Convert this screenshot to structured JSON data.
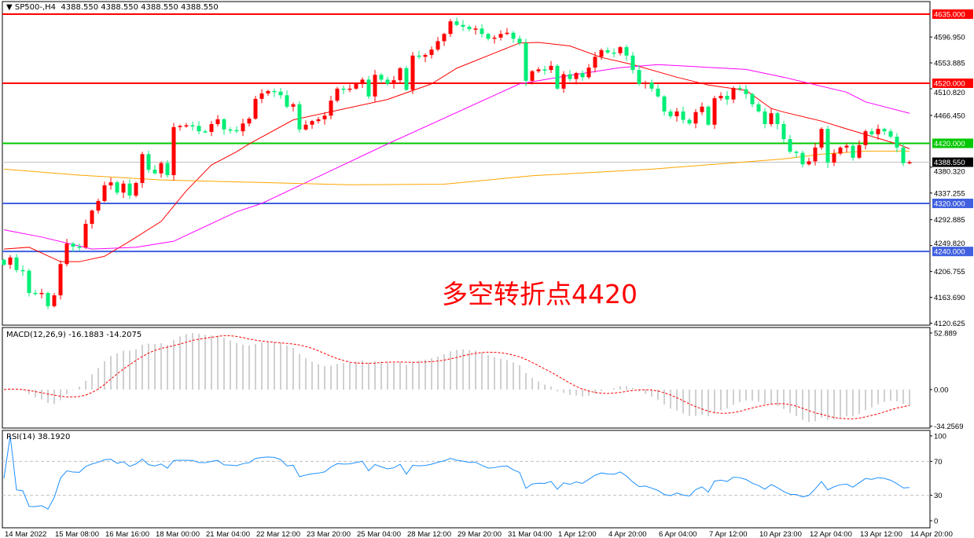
{
  "header": {
    "symbol": "SP500-,H4",
    "ohlc": "4388.550 4388.550 4388.550 4388.550"
  },
  "annotation": "多空转折点4420",
  "macd_label": "MACD(12,26,9) -16.1883 -14.2075",
  "rsi_label": "RSI(14) 38.1920",
  "colors": {
    "bull": "#ff0000",
    "bear": "#00ee76",
    "ma_fast": "#ff0000",
    "ma_mid": "#ff00ff",
    "ma_slow": "#ffa500",
    "macd_hist": "#c0c0c0",
    "macd_signal": "#ff0000",
    "rsi": "#1e90ff"
  },
  "chart_data": [
    {
      "type": "candlestick",
      "timeframe": "H4",
      "symbol": "SP500-",
      "ylim": [
        4120.625,
        4640.015
      ],
      "price_ticks": [
        "4596.950",
        "4553.885",
        "4510.820",
        "4466.450",
        "4380.320",
        "4337.255",
        "4292.885",
        "4249.820",
        "4206.755",
        "4163.690",
        "4120.625"
      ],
      "time_labels": [
        "14 Mar 2022",
        "15 Mar 08:00",
        "16 Mar 16:00",
        "18 Mar 00:00",
        "21 Mar 04:00",
        "22 Mar 12:00",
        "23 Mar 20:00",
        "25 Mar 04:00",
        "28 Mar 12:00",
        "29 Mar 20:00",
        "31 Mar 04:00",
        "1 Apr 12:00",
        "4 Apr 20:00",
        "6 Apr 04:00",
        "7 Apr 12:00",
        "10 Apr 23:00",
        "12 Apr 04:00",
        "13 Apr 12:00",
        "14 Apr 20:00"
      ],
      "close": [
        4218,
        4230,
        4209,
        4208,
        4171,
        4170,
        4171,
        4149,
        4167,
        4219,
        4253,
        4248,
        4247,
        4286,
        4308,
        4324,
        4350,
        4355,
        4338,
        4353,
        4333,
        4354,
        4402,
        4376,
        4370,
        4387,
        4367,
        4447,
        4449,
        4450,
        4449,
        4440,
        4439,
        4452,
        4460,
        4443,
        4442,
        4440,
        4453,
        4461,
        4494,
        4503,
        4507,
        4506,
        4500,
        4481,
        4485,
        4443,
        4451,
        4457,
        4460,
        4466,
        4491,
        4511,
        4510,
        4511,
        4519,
        4526,
        4498,
        4534,
        4526,
        4519,
        4525,
        4545,
        4509,
        4566,
        4564,
        4567,
        4576,
        4590,
        4602,
        4623,
        4617,
        4614,
        4610,
        4611,
        4602,
        4594,
        4596,
        4602,
        4604,
        4594,
        4587,
        4524,
        4540,
        4543,
        4542,
        4549,
        4511,
        4535,
        4527,
        4537,
        4530,
        4546,
        4564,
        4575,
        4571,
        4570,
        4580,
        4566,
        4542,
        4519,
        4521,
        4511,
        4498,
        4473,
        4465,
        4473,
        4459,
        4453,
        4472,
        4481,
        4451,
        4495,
        4499,
        4493,
        4512,
        4510,
        4502,
        4485,
        4473,
        4452,
        4470,
        4452,
        4427,
        4406,
        4404,
        4385,
        4390,
        4413,
        4444,
        4388,
        4403,
        4413,
        4416,
        4396,
        4417,
        4440,
        4435,
        4444,
        4440,
        4431,
        4413,
        4387,
        4388.55
      ],
      "moving_averages": [
        {
          "color": "#ff0000",
          "points": [
            [
              0,
              4244
            ],
            [
              4,
              4247
            ],
            [
              9,
              4223
            ],
            [
              12,
              4223
            ],
            [
              16,
              4232
            ],
            [
              20,
              4257
            ],
            [
              25,
              4290
            ],
            [
              29,
              4341
            ],
            [
              33,
              4384
            ],
            [
              37,
              4406
            ],
            [
              39,
              4419
            ],
            [
              46,
              4459
            ],
            [
              61,
              4493
            ],
            [
              68,
              4519
            ],
            [
              72,
              4545
            ],
            [
              82,
              4587
            ],
            [
              85,
              4588
            ],
            [
              90,
              4582
            ],
            [
              95,
              4563
            ],
            [
              100,
              4551
            ],
            [
              107,
              4530
            ],
            [
              112,
              4517
            ],
            [
              118,
              4508
            ],
            [
              122,
              4478
            ],
            [
              124,
              4472
            ],
            [
              130,
              4457
            ],
            [
              134,
              4444
            ],
            [
              142,
              4419
            ],
            [
              144,
              4411
            ]
          ]
        },
        {
          "color": "#ff00ff",
          "points": [
            [
              0,
              4276
            ],
            [
              6,
              4264
            ],
            [
              14,
              4244
            ],
            [
              21,
              4247
            ],
            [
              27,
              4257
            ],
            [
              37,
              4306
            ],
            [
              41,
              4320
            ],
            [
              61,
              4419
            ],
            [
              82,
              4519
            ],
            [
              90,
              4533
            ],
            [
              98,
              4546
            ],
            [
              104,
              4551
            ],
            [
              118,
              4543
            ],
            [
              124,
              4530
            ],
            [
              134,
              4505
            ],
            [
              137,
              4489
            ],
            [
              144,
              4470
            ]
          ]
        },
        {
          "color": "#ffa500",
          "points": [
            [
              0,
              4377
            ],
            [
              12,
              4367
            ],
            [
              25,
              4359
            ],
            [
              55,
              4351
            ],
            [
              70,
              4352
            ],
            [
              84,
              4366
            ],
            [
              103,
              4377
            ],
            [
              124,
              4394
            ],
            [
              130,
              4402
            ],
            [
              137,
              4407
            ],
            [
              144,
              4407
            ]
          ]
        }
      ],
      "levels": [
        {
          "price": 4635,
          "label": "4635.000",
          "color": "#ff0000"
        },
        {
          "price": 4520,
          "label": "4520.000",
          "color": "#ff0000"
        },
        {
          "price": 4420,
          "label": "4420.000",
          "color": "#00c800"
        },
        {
          "price": 4320,
          "label": "4320.000",
          "color": "#4060e0"
        },
        {
          "price": 4240,
          "label": "4240.000",
          "color": "#4060e0"
        }
      ],
      "current_price": {
        "price": 4388.55,
        "label": "4388.550",
        "color": "#c0c0c0"
      }
    },
    {
      "type": "macd",
      "params": [
        12,
        26,
        9
      ],
      "ylim": [
        -34.2569,
        52.889
      ],
      "ticks": [
        "52.889",
        "0.00",
        "-34.2569"
      ]
    },
    {
      "type": "rsi",
      "period": 14,
      "ylim": [
        0,
        100
      ],
      "ticks": [
        "100",
        "70",
        "30",
        "0"
      ],
      "levels": [
        70,
        30
      ]
    }
  ]
}
